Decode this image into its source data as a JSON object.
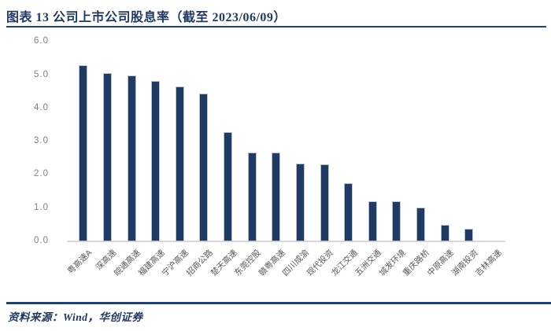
{
  "header": {
    "title": "图表 13 公司上市公司股息率（截至 2023/06/09）",
    "title_color": "#1F3864",
    "rule_color": "#1B4379"
  },
  "footer": {
    "source": "资料来源：Wind，华创证券"
  },
  "chart_data": {
    "type": "bar",
    "title": "公司上市公司股息率（截至 2023/06/09）",
    "categories": [
      "粤高速A",
      "深高速",
      "皖通高速",
      "福建高速",
      "宁沪高速",
      "招商公路",
      "楚天高速",
      "东莞控股",
      "赣粤高速",
      "四川成渝",
      "现代投资",
      "龙江交通",
      "五洲交通",
      "城发环境",
      "重庆路桥",
      "中原高速",
      "湖南投资",
      "吉林高速"
    ],
    "values": [
      5.29,
      5.07,
      4.99,
      4.82,
      4.67,
      4.44,
      3.29,
      2.68,
      2.67,
      2.35,
      2.31,
      1.74,
      1.21,
      1.2,
      1.01,
      0.49,
      0.38,
      0.0
    ],
    "xlabel": "",
    "ylabel": "",
    "ylim": [
      0,
      6
    ],
    "yticks": [
      "0.0",
      "1.0",
      "2.0",
      "3.0",
      "4.0",
      "5.0",
      "6.0"
    ],
    "grid": false,
    "legend": "none",
    "bar_color": "#1F3B63",
    "bar_border_color": "#B7C0CE",
    "axis_line_color": "#D9D9D9",
    "ytick_color": "#808080",
    "xtick_color": "#595959"
  }
}
